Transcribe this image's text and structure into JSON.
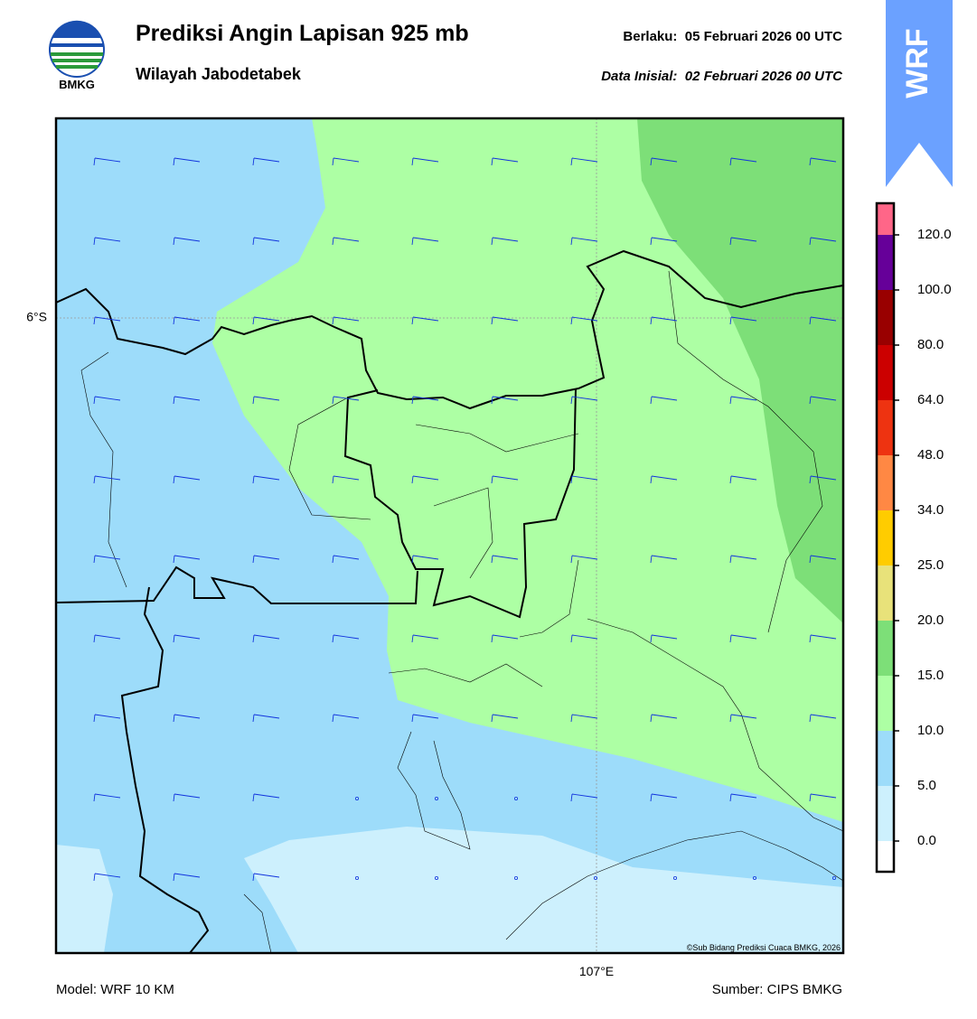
{
  "header": {
    "title": "Prediksi Angin Lapisan 925 mb",
    "subtitle": "Wilayah Jabodetabek",
    "valid": "Berlaku:  05 Februari 2026 00 UTC",
    "init": "Data Inisial:  02 Februari 2026 00 UTC",
    "logo_text": "BMKG",
    "badge": "WRF"
  },
  "map": {
    "lat_label": "6°S",
    "lon_label": "107°E",
    "credit": "©Sub Bidang Prediksi Cuaca BMKG, 2026"
  },
  "colorbar": {
    "ticks": [
      {
        "value": 0,
        "label": "0.0"
      },
      {
        "value": 5,
        "label": "5.0"
      },
      {
        "value": 10,
        "label": "10.0"
      },
      {
        "value": 15,
        "label": "15.0"
      },
      {
        "value": 20,
        "label": "20.0"
      },
      {
        "value": 25,
        "label": "25.0"
      },
      {
        "value": 34,
        "label": "34.0"
      },
      {
        "value": 48,
        "label": "48.0"
      },
      {
        "value": 64,
        "label": "64.0"
      },
      {
        "value": 80,
        "label": "80.0"
      },
      {
        "value": 100,
        "label": "100.0"
      },
      {
        "value": 120,
        "label": "120.0"
      }
    ],
    "colors": [
      "#ffffff",
      "#cdf0fd",
      "#9ddcfa",
      "#adffa4",
      "#7ddf78",
      "#e8e27a",
      "#ffcc00",
      "#ff8844",
      "#ee3311",
      "#cc0000",
      "#990000",
      "#660099",
      "#ff6688"
    ]
  },
  "footer": {
    "model": "Model: WRF 10 KM",
    "source": "Sumber: CIPS BMKG"
  }
}
